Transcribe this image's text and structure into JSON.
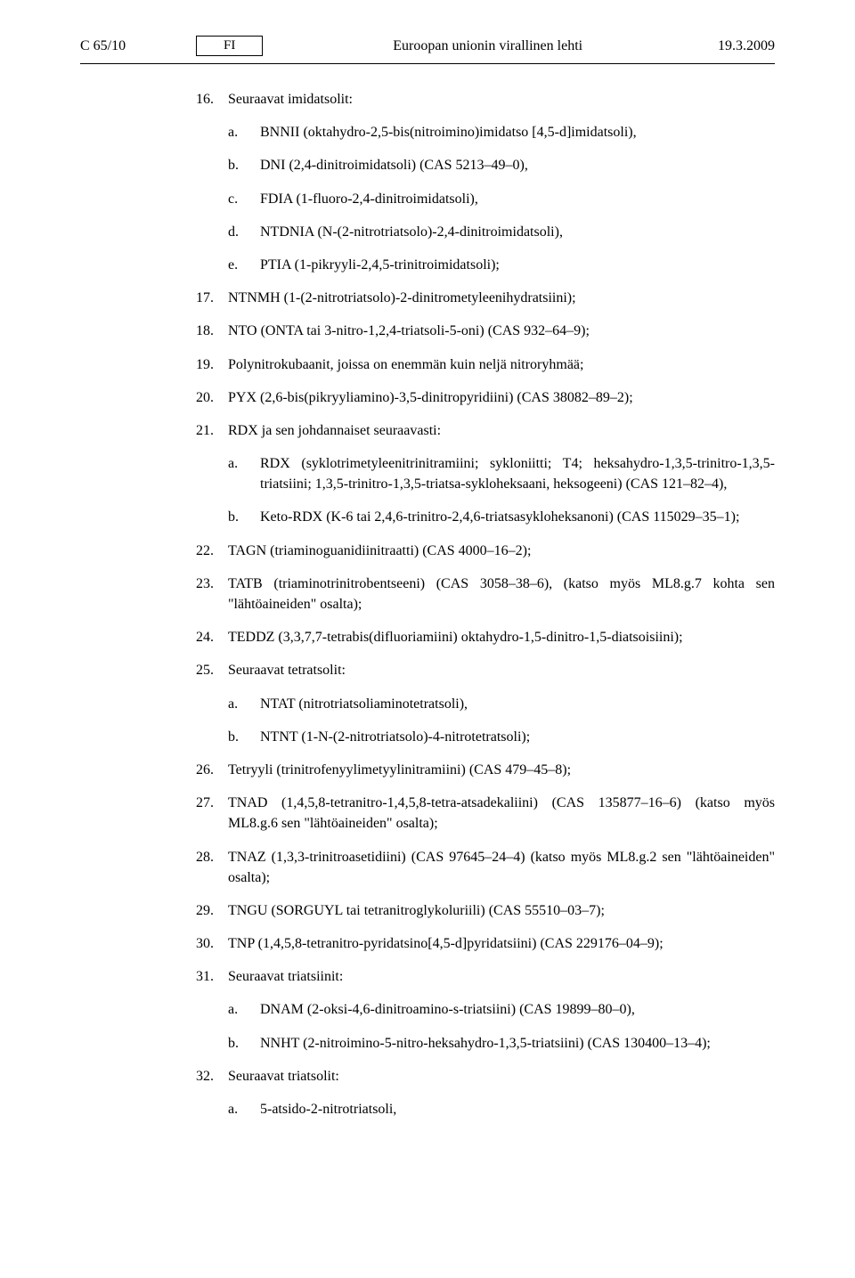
{
  "header": {
    "page_ref": "C 65/10",
    "lang": "FI",
    "journal_title": "Euroopan unionin virallinen lehti",
    "date": "19.3.2009"
  },
  "item16": {
    "num": "16.",
    "title": "Seuraavat imidatsolit:",
    "subs": [
      {
        "let": "a.",
        "txt": "BNNII (oktahydro-2,5-bis(nitroimino)imidatso [4,5-d]imidatsoli),"
      },
      {
        "let": "b.",
        "txt": "DNI (2,4-dinitroimidatsoli) (CAS 5213–49–0),"
      },
      {
        "let": "c.",
        "txt": "FDIA (1-fluoro-2,4-dinitroimidatsoli),"
      },
      {
        "let": "d.",
        "txt": "NTDNIA (N-(2-nitrotriatsolo)-2,4-dinitroimidatsoli),"
      },
      {
        "let": "e.",
        "txt": "PTIA (1-pikryyli-2,4,5-trinitroimidatsoli);"
      }
    ]
  },
  "items_mid": [
    {
      "num": "17.",
      "txt": "NTNMH (1-(2-nitrotriatsolo)-2-dinitrometyleenihydratsiini);"
    },
    {
      "num": "18.",
      "txt": "NTO (ONTA tai 3-nitro-1,2,4-triatsoli-5-oni) (CAS 932–64–9);"
    },
    {
      "num": "19.",
      "txt": "Polynitrokubaanit, joissa on enemmän kuin neljä nitroryhmää;"
    },
    {
      "num": "20.",
      "txt": "PYX (2,6-bis(pikryyliamino)-3,5-dinitropyridiini) (CAS 38082–89–2);"
    }
  ],
  "item21": {
    "num": "21.",
    "title": "RDX ja sen johdannaiset seuraavasti:",
    "subs": [
      {
        "let": "a.",
        "txt": "RDX (syklotrimetyleenitrinitramiini; sykloniitti; T4; heksahydro-1,3,5-trinitro-1,3,5-triatsiini; 1,3,5-trinitro-1,3,5-triatsa-sykloheksaani, heksogeeni) (CAS 121–82–4),"
      },
      {
        "let": "b.",
        "txt": "Keto-RDX (K-6 tai 2,4,6-trinitro-2,4,6-triatsasykloheksanoni) (CAS 115029–35–1);"
      }
    ]
  },
  "items_mid2": [
    {
      "num": "22.",
      "txt": "TAGN (triaminoguanidiinitraatti) (CAS 4000–16–2);"
    },
    {
      "num": "23.",
      "txt": "TATB (triaminotrinitrobentseeni) (CAS 3058–38–6), (katso myös ML8.g.7 kohta sen \"lähtöaineiden\" osalta);"
    },
    {
      "num": "24.",
      "txt": "TEDDZ (3,3,7,7-tetrabis(difluoriamiini) oktahydro-1,5-dinitro-1,5-diatsoisiini);"
    }
  ],
  "item25": {
    "num": "25.",
    "title": "Seuraavat tetratsolit:",
    "subs": [
      {
        "let": "a.",
        "txt": "NTAT (nitrotriatsoliaminotetratsoli),"
      },
      {
        "let": "b.",
        "txt": "NTNT (1-N-(2-nitrotriatsolo)-4-nitrotetratsoli);"
      }
    ]
  },
  "items_mid3": [
    {
      "num": "26.",
      "txt": "Tetryyli (trinitrofenyylimetyylinitramiini) (CAS 479–45–8);"
    },
    {
      "num": "27.",
      "txt": "TNAD (1,4,5,8-tetranitro-1,4,5,8-tetra-atsadekaliini) (CAS 135877–16–6) (katso myös ML8.g.6 sen \"lähtöaineiden\" osalta);"
    },
    {
      "num": "28.",
      "txt": "TNAZ (1,3,3-trinitroasetidiini) (CAS 97645–24–4) (katso myös ML8.g.2 sen \"lähtöaineiden\" osalta);"
    },
    {
      "num": "29.",
      "txt": "TNGU (SORGUYL tai tetranitroglykoluriili) (CAS 55510–03–7);"
    },
    {
      "num": "30.",
      "txt": "TNP (1,4,5,8-tetranitro-pyridatsino[4,5-d]pyridatsiini) (CAS 229176–04–9);"
    }
  ],
  "item31": {
    "num": "31.",
    "title": "Seuraavat triatsiinit:",
    "subs": [
      {
        "let": "a.",
        "txt": "DNAM (2-oksi-4,6-dinitroamino-s-triatsiini) (CAS 19899–80–0),"
      },
      {
        "let": "b.",
        "txt": "NNHT (2-nitroimino-5-nitro-heksahydro-1,3,5-triatsiini) (CAS 130400–13–4);"
      }
    ]
  },
  "item32": {
    "num": "32.",
    "title": "Seuraavat triatsolit:",
    "subs": [
      {
        "let": "a.",
        "txt": "5-atsido-2-nitrotriatsoli,"
      }
    ]
  }
}
